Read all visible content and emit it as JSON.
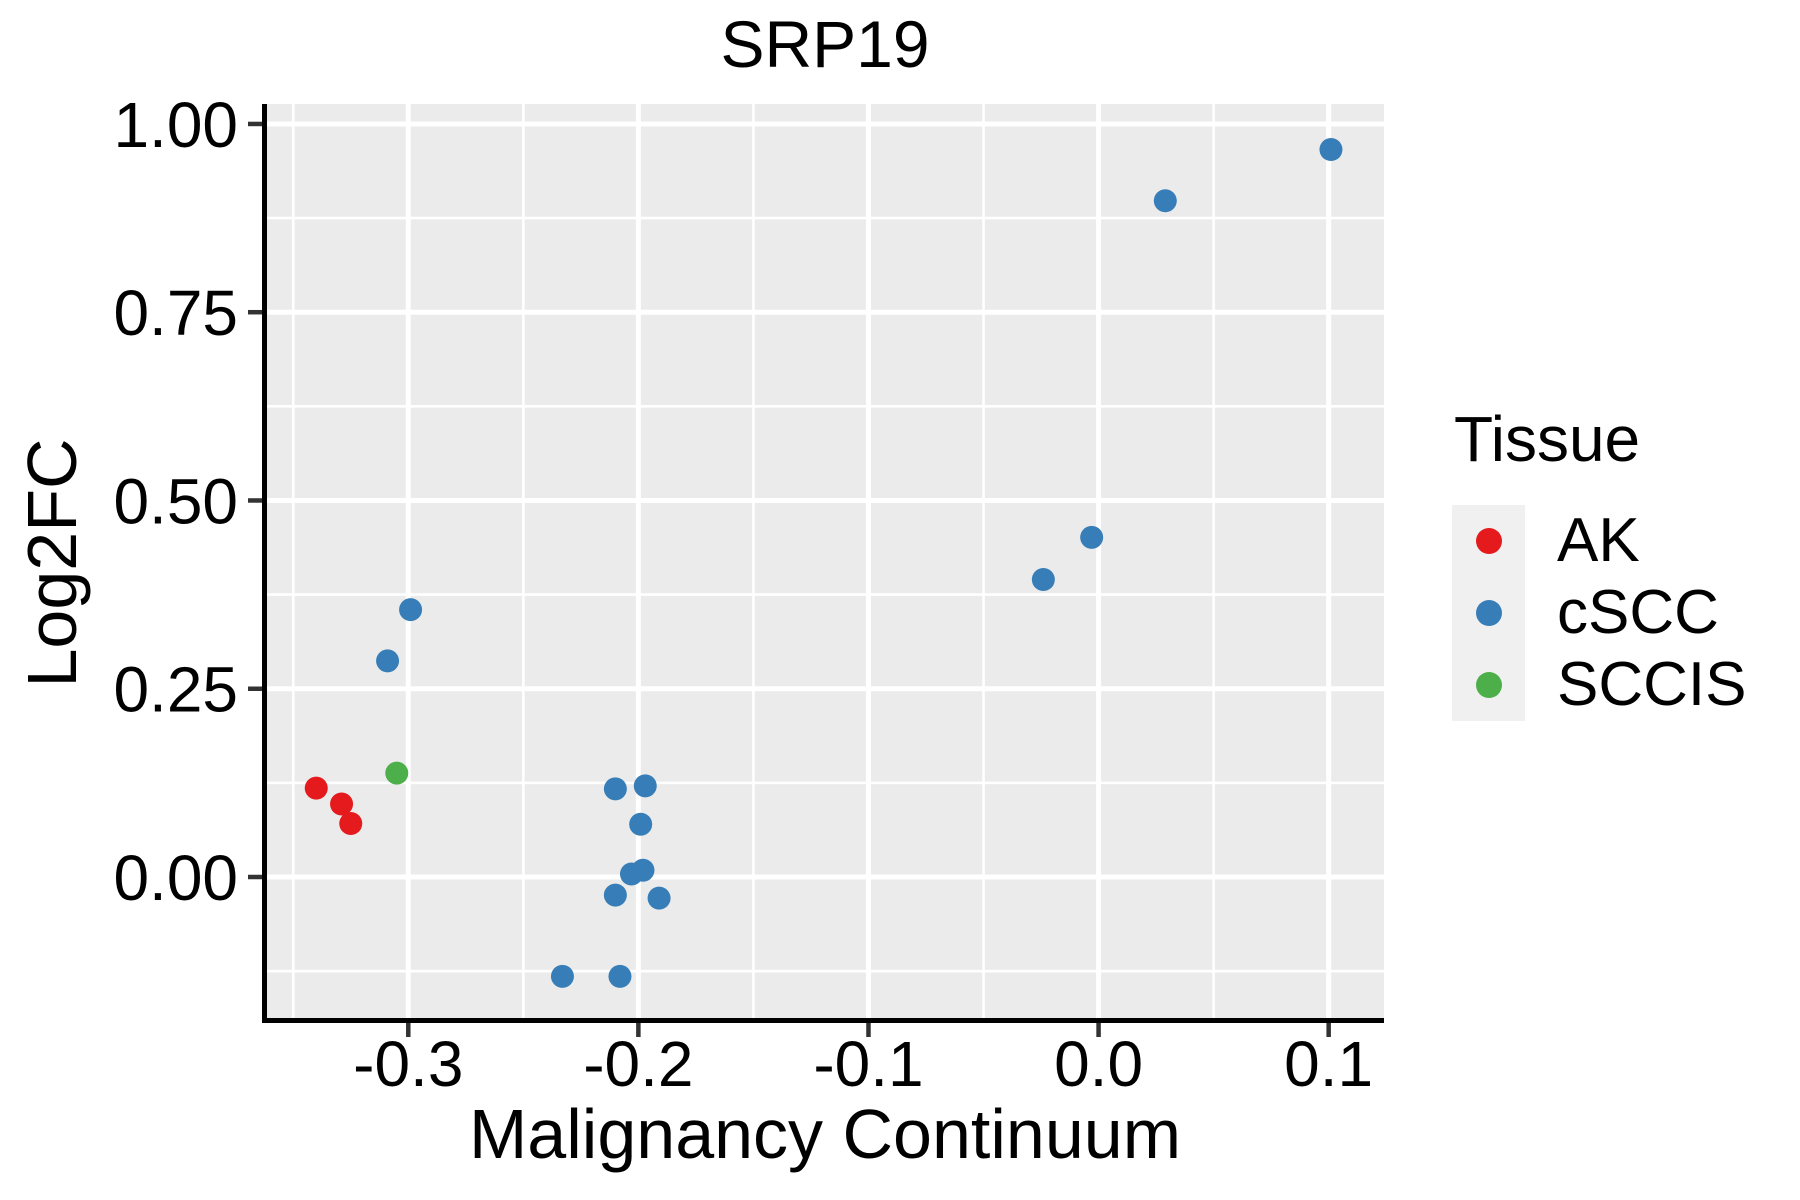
{
  "chart": {
    "title": "SRP19",
    "xlabel": "Malignancy Continuum",
    "ylabel": "Log2FC"
  },
  "legend": {
    "title": "Tissue",
    "items": [
      {
        "label": "AK",
        "color": "#E41A1C"
      },
      {
        "label": "cSCC",
        "color": "#377EB8"
      },
      {
        "label": "SCCIS",
        "color": "#4DAF4A"
      }
    ]
  },
  "colors": {
    "panel_background": "#EBEBEB",
    "gridline": "#FFFFFF",
    "legend_key_background": "#F0F0F0",
    "axis_line": "#000000",
    "tick_mark": "#333333",
    "text": "#000000"
  },
  "chart_data": {
    "type": "scatter",
    "title": "SRP19",
    "xlabel": "Malignancy Continuum",
    "ylabel": "Log2FC",
    "xlim": [
      -0.3614,
      0.12405
    ],
    "ylim": [
      -0.18723,
      1.0265
    ],
    "x_ticks": [
      -0.3,
      -0.2,
      -0.1,
      0.0,
      0.1
    ],
    "x_tick_labels": [
      "-0.3",
      "-0.2",
      "-0.1",
      "0.0",
      "0.1"
    ],
    "y_ticks": [
      1.0,
      0.75,
      0.5,
      0.25,
      0.0
    ],
    "y_tick_labels": [
      "1.00",
      "0.75",
      "0.50",
      "0.25",
      "0.00"
    ],
    "x_minor_ticks": [
      -0.35,
      -0.25,
      -0.15,
      -0.05,
      0.05
    ],
    "y_minor_ticks": [
      0.875,
      0.625,
      0.375,
      0.125,
      -0.125
    ],
    "grid": "white major and minor gridlines on gray panel",
    "legend_position": "right",
    "legend_title": "Tissue",
    "series": [
      {
        "name": "AK",
        "color": "#E41A1C",
        "points": [
          [
            -0.34,
            0.118
          ],
          [
            -0.329,
            0.097
          ],
          [
            -0.325,
            0.071
          ]
        ]
      },
      {
        "name": "cSCC",
        "color": "#377EB8",
        "points": [
          [
            -0.309,
            0.287
          ],
          [
            -0.299,
            0.355
          ],
          [
            -0.233,
            -0.132
          ],
          [
            -0.21,
            0.117
          ],
          [
            -0.21,
            -0.024
          ],
          [
            -0.208,
            -0.132
          ],
          [
            -0.203,
            0.004
          ],
          [
            -0.198,
            0.009
          ],
          [
            -0.199,
            0.07
          ],
          [
            -0.197,
            0.121
          ],
          [
            -0.191,
            -0.028
          ],
          [
            -0.024,
            0.395
          ],
          [
            -0.003,
            0.451
          ],
          [
            0.029,
            0.898
          ],
          [
            0.101,
            0.966
          ]
        ]
      },
      {
        "name": "SCCIS",
        "color": "#4DAF4A",
        "points": [
          [
            -0.305,
            0.138
          ]
        ]
      }
    ]
  }
}
